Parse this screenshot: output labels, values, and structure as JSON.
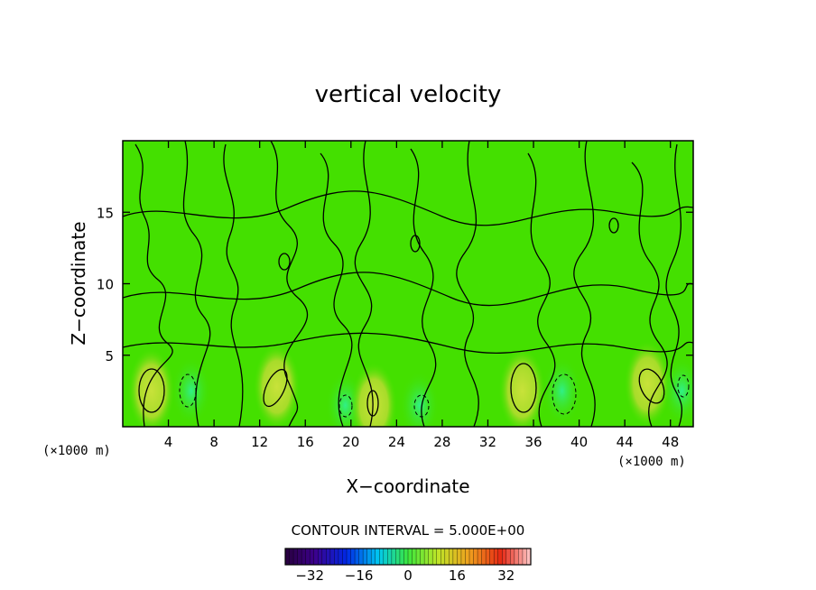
{
  "chart_data": {
    "type": "heatmap",
    "title": "vertical velocity",
    "xlabel": "X−coordinate",
    "ylabel": "Z−coordinate",
    "x_unit": "(×1000 m)",
    "z_unit": "(×1000 m)",
    "xlim": [
      0,
      50
    ],
    "ylim": [
      0,
      20
    ],
    "x_ticks": [
      "4",
      "8",
      "12",
      "16",
      "20",
      "24",
      "28",
      "32",
      "36",
      "40",
      "44",
      "48"
    ],
    "y_ticks": [
      "5",
      "10",
      "15"
    ],
    "contour_interval": "CONTOUR INTERVAL = 5.000E+00",
    "colorbar": {
      "range": [
        -40,
        40
      ],
      "tick_labels": [
        "−32",
        "−16",
        "0",
        "16",
        "32"
      ]
    },
    "features": [
      {
        "kind": "updraft",
        "x": 2.5,
        "z": 2.5,
        "value": 10
      },
      {
        "kind": "downdraft",
        "x": 6.0,
        "z": 2.5,
        "value": -5
      },
      {
        "kind": "updraft",
        "x": 13.5,
        "z": 2.8,
        "value": 10
      },
      {
        "kind": "downdraft",
        "x": 19.5,
        "z": 1.5,
        "value": -5
      },
      {
        "kind": "updraft",
        "x": 22.0,
        "z": 1.5,
        "value": 5
      },
      {
        "kind": "downdraft",
        "x": 26.0,
        "z": 1.5,
        "value": -5
      },
      {
        "kind": "updraft",
        "x": 35.0,
        "z": 2.5,
        "value": 10
      },
      {
        "kind": "downdraft",
        "x": 38.5,
        "z": 2.5,
        "value": -5
      },
      {
        "kind": "updraft",
        "x": 46.0,
        "z": 3.0,
        "value": 10
      },
      {
        "kind": "downdraft",
        "x": 49.0,
        "z": 2.5,
        "value": -5
      }
    ]
  }
}
